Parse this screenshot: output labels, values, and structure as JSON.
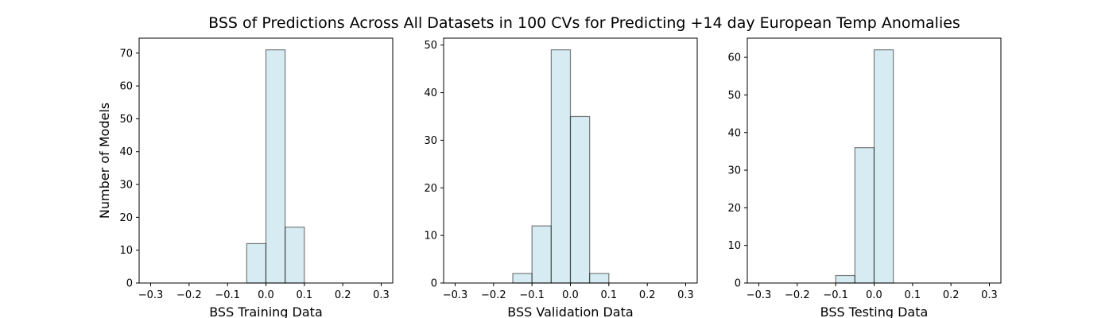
{
  "figure": {
    "title": "BSS of Predictions Across All Datasets in 100 CVs for Predicting +14 day European Temp Anomalies",
    "bar_color": "#add8e6",
    "edge_color": "#000000"
  },
  "chart_data": [
    {
      "type": "bar",
      "title": "",
      "xlabel": "BSS Training Data",
      "ylabel": "Number of Models",
      "xlim": [
        -0.33,
        0.33
      ],
      "ylim": [
        0,
        74.55
      ],
      "xticks": [
        -0.3,
        -0.2,
        -0.1,
        0.0,
        0.1,
        0.2,
        0.3
      ],
      "xtick_labels": [
        "−0.3",
        "−0.2",
        "−0.1",
        "0.0",
        "0.1",
        "0.2",
        "0.3"
      ],
      "yticks": [
        0,
        10,
        20,
        30,
        40,
        50,
        60,
        70
      ],
      "ytick_labels": [
        "0",
        "10",
        "20",
        "30",
        "40",
        "50",
        "60",
        "70"
      ],
      "bin_width": 0.05,
      "bins": [
        {
          "left": -0.05,
          "count": 12
        },
        {
          "left": 0.0,
          "count": 71
        },
        {
          "left": 0.05,
          "count": 17
        }
      ]
    },
    {
      "type": "bar",
      "title": "",
      "xlabel": "BSS Validation Data",
      "ylabel": "",
      "xlim": [
        -0.33,
        0.33
      ],
      "ylim": [
        0,
        51.45
      ],
      "xticks": [
        -0.3,
        -0.2,
        -0.1,
        0.0,
        0.1,
        0.2,
        0.3
      ],
      "xtick_labels": [
        "−0.3",
        "−0.2",
        "−0.1",
        "0.0",
        "0.1",
        "0.2",
        "0.3"
      ],
      "yticks": [
        0,
        10,
        20,
        30,
        40,
        50
      ],
      "ytick_labels": [
        "0",
        "10",
        "20",
        "30",
        "40",
        "50"
      ],
      "bin_width": 0.05,
      "bins": [
        {
          "left": -0.15,
          "count": 2
        },
        {
          "left": -0.1,
          "count": 12
        },
        {
          "left": -0.05,
          "count": 49
        },
        {
          "left": 0.0,
          "count": 35
        },
        {
          "left": 0.05,
          "count": 2
        }
      ]
    },
    {
      "type": "bar",
      "title": "",
      "xlabel": "BSS Testing Data",
      "ylabel": "",
      "xlim": [
        -0.33,
        0.33
      ],
      "ylim": [
        0,
        65.1
      ],
      "xticks": [
        -0.3,
        -0.2,
        -0.1,
        0.0,
        0.1,
        0.2,
        0.3
      ],
      "xtick_labels": [
        "−0.3",
        "−0.2",
        "−0.1",
        "0.0",
        "0.1",
        "0.2",
        "0.3"
      ],
      "yticks": [
        0,
        10,
        20,
        30,
        40,
        50,
        60
      ],
      "ytick_labels": [
        "0",
        "10",
        "20",
        "30",
        "40",
        "50",
        "60"
      ],
      "bin_width": 0.05,
      "bins": [
        {
          "left": -0.1,
          "count": 2
        },
        {
          "left": -0.05,
          "count": 36
        },
        {
          "left": 0.0,
          "count": 62
        }
      ]
    }
  ]
}
